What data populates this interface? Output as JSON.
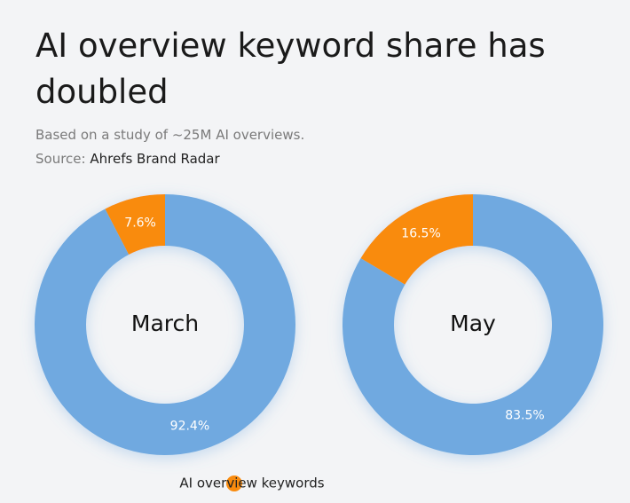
{
  "title": "AI overview keyword share has doubled",
  "subtitle": "Based on a study of ~25M AI overviews.",
  "source_label": "Source:",
  "source": "Ahrefs Brand Radar",
  "legend": {
    "name": "AI overview keywords",
    "color": "#f98b0e"
  },
  "chart_data": [
    {
      "type": "donut",
      "center_label": "March",
      "values": [
        7.6,
        92.4
      ],
      "value_labels": [
        "7.6%",
        "92.4%"
      ],
      "colors": [
        "#f98b0e",
        "#6fa9e0"
      ]
    },
    {
      "type": "donut",
      "center_label": "May",
      "values": [
        16.5,
        83.5
      ],
      "value_labels": [
        "16.5%",
        "83.5%"
      ],
      "colors": [
        "#f98b0e",
        "#6fa9e0"
      ]
    }
  ]
}
